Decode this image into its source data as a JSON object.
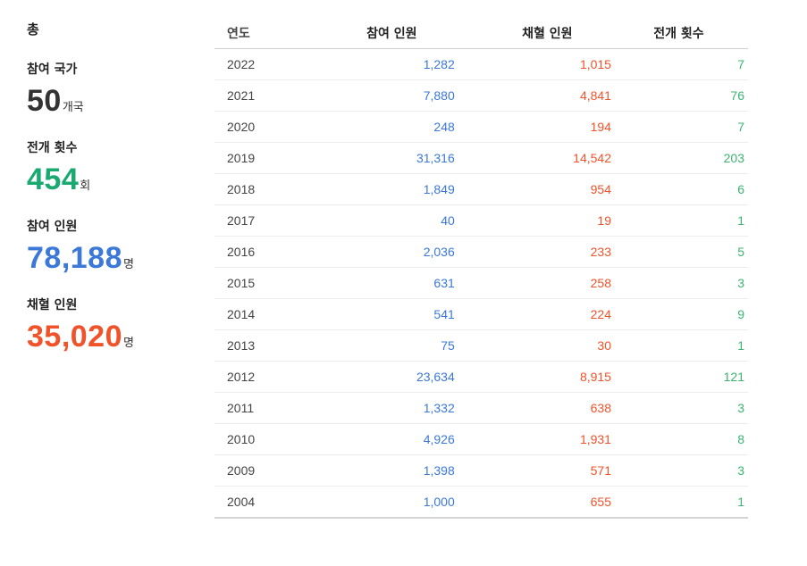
{
  "colors": {
    "participants": "#3b78d8",
    "hires": "#f0522a",
    "count": "#3cb371",
    "countBig": "#1aa971",
    "neutral": "#333333"
  },
  "summary": {
    "heading": "총",
    "countries": {
      "label": "참여 국가",
      "value": "50",
      "unit": "개국"
    },
    "events": {
      "label": "전개 횟수",
      "value": "454",
      "unit": "회"
    },
    "participants": {
      "label": "참여 인원",
      "value": "78,188",
      "unit": "명"
    },
    "hires": {
      "label": "채혈 인원",
      "value": "35,020",
      "unit": "명"
    }
  },
  "table": {
    "headers": {
      "year": "연도",
      "participants": "참여 인원",
      "hires": "채혈 인원",
      "count": "전개 횟수"
    },
    "rows": [
      {
        "year": "2022",
        "participants": "1,282",
        "hires": "1,015",
        "count": "7"
      },
      {
        "year": "2021",
        "participants": "7,880",
        "hires": "4,841",
        "count": "76"
      },
      {
        "year": "2020",
        "participants": "248",
        "hires": "194",
        "count": "7"
      },
      {
        "year": "2019",
        "participants": "31,316",
        "hires": "14,542",
        "count": "203"
      },
      {
        "year": "2018",
        "participants": "1,849",
        "hires": "954",
        "count": "6"
      },
      {
        "year": "2017",
        "participants": "40",
        "hires": "19",
        "count": "1"
      },
      {
        "year": "2016",
        "participants": "2,036",
        "hires": "233",
        "count": "5"
      },
      {
        "year": "2015",
        "participants": "631",
        "hires": "258",
        "count": "3"
      },
      {
        "year": "2014",
        "participants": "541",
        "hires": "224",
        "count": "9"
      },
      {
        "year": "2013",
        "participants": "75",
        "hires": "30",
        "count": "1"
      },
      {
        "year": "2012",
        "participants": "23,634",
        "hires": "8,915",
        "count": "121"
      },
      {
        "year": "2011",
        "participants": "1,332",
        "hires": "638",
        "count": "3"
      },
      {
        "year": "2010",
        "participants": "4,926",
        "hires": "1,931",
        "count": "8"
      },
      {
        "year": "2009",
        "participants": "1,398",
        "hires": "571",
        "count": "3"
      },
      {
        "year": "2004",
        "participants": "1,000",
        "hires": "655",
        "count": "1"
      }
    ]
  }
}
